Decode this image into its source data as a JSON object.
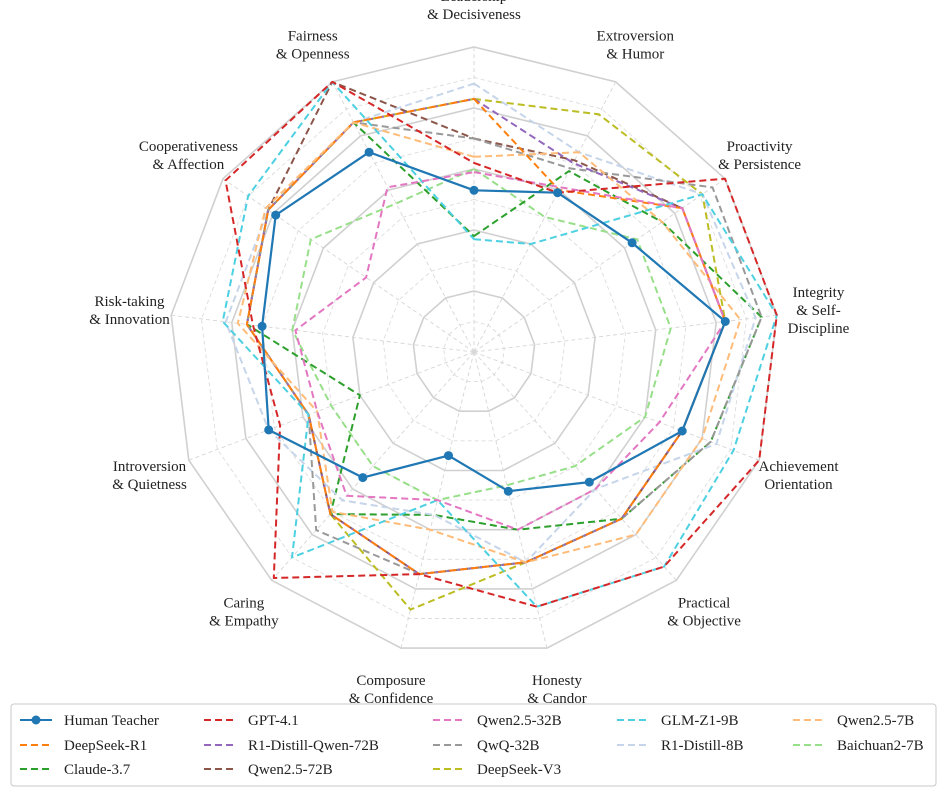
{
  "chart_data": {
    "type": "radar",
    "title": "",
    "axes": [
      [
        "Leadership",
        "& Decisiveness"
      ],
      [
        "Extroversion",
        "& Humor"
      ],
      [
        "Proactivity",
        "& Persistence"
      ],
      [
        "Integrity",
        "& Self-",
        "Discipline"
      ],
      [
        "Achievement",
        "Orientation"
      ],
      [
        "Practical",
        "& Objective"
      ],
      [
        "Honesty",
        "& Candor"
      ],
      [
        "Composure",
        "& Confidence"
      ],
      [
        "Caring",
        "& Empathy"
      ],
      [
        "Introversion",
        "& Quietness"
      ],
      [
        "Risk-taking",
        "& Innovation"
      ],
      [
        "Cooperativeness",
        "& Affection"
      ],
      [
        "Fairness",
        "& Openness"
      ]
    ],
    "rlim": [
      0,
      1
    ],
    "grid_levels": 10,
    "series": [
      {
        "name": "Human Teacher",
        "color": "#1f77b4",
        "dash": "solid",
        "marker": true,
        "values": [
          0.53,
          0.59,
          0.63,
          0.83,
          0.73,
          0.57,
          0.47,
          0.35,
          0.55,
          0.72,
          0.7,
          0.79,
          0.74
        ]
      },
      {
        "name": "GPT-4.1",
        "color": "#d62728",
        "dash": "dashed",
        "marker": false,
        "values": [
          0.62,
          0.59,
          1.0,
          1.0,
          1.0,
          0.94,
          0.86,
          0.75,
          0.99,
          0.68,
          0.73,
          0.99,
          1.0
        ]
      },
      {
        "name": "Qwen2.5-32B",
        "color": "#e377c2",
        "dash": "dashed",
        "marker": false,
        "values": [
          0.59,
          0.61,
          0.83,
          0.83,
          0.65,
          0.6,
          0.6,
          0.5,
          0.63,
          0.55,
          0.59,
          0.43,
          0.61
        ]
      },
      {
        "name": "GLM-Z1-9B",
        "color": "#4dd0e1",
        "dash": "dashed",
        "marker": false,
        "values": [
          0.37,
          0.4,
          0.91,
          1.0,
          0.91,
          0.94,
          0.86,
          0.5,
          0.9,
          0.58,
          0.83,
          0.9,
          1.0
        ]
      },
      {
        "name": "Qwen2.5-7B",
        "color": "#ffbb78",
        "dash": "dashed",
        "marker": false,
        "values": [
          0.64,
          0.74,
          0.75,
          0.88,
          0.8,
          0.8,
          0.71,
          0.6,
          0.7,
          0.55,
          0.78,
          0.83,
          0.85
        ]
      },
      {
        "name": "DeepSeek-R1",
        "color": "#ff7f0e",
        "dash": "dashed",
        "marker": false,
        "values": [
          0.83,
          0.6,
          0.83,
          0.83,
          0.73,
          0.73,
          0.71,
          0.75,
          0.71,
          0.58,
          0.75,
          0.82,
          0.85
        ]
      },
      {
        "name": "R1-Distill-Qwen-72B",
        "color": "#9467bd",
        "dash": "dashed",
        "marker": false,
        "values": [
          0.83,
          0.7,
          0.83,
          0.83,
          0.73,
          0.73,
          0.71,
          0.75,
          0.71,
          0.58,
          0.75,
          0.82,
          0.85
        ]
      },
      {
        "name": "QwQ-32B",
        "color": "#999999",
        "dash": "dashed",
        "marker": false,
        "values": [
          0.7,
          0.68,
          0.95,
          0.95,
          0.83,
          0.73,
          0.71,
          0.75,
          0.78,
          0.58,
          0.75,
          0.82,
          0.85
        ]
      },
      {
        "name": "R1-Distill-8B",
        "color": "#c6d5ea",
        "dash": "dashed",
        "marker": false,
        "values": [
          0.88,
          0.74,
          0.91,
          0.93,
          0.85,
          0.6,
          0.71,
          0.55,
          0.65,
          0.72,
          0.82,
          0.82,
          0.85
        ]
      },
      {
        "name": "Claude-3.7",
        "color": "#2ca02c",
        "dash": "dashed",
        "marker": false,
        "values": [
          0.38,
          0.67,
          0.75,
          0.95,
          0.83,
          0.73,
          0.6,
          0.55,
          0.71,
          0.4,
          0.75,
          0.82,
          0.85
        ]
      },
      {
        "name": "Qwen2.5-72B",
        "color": "#8c564b",
        "dash": "dashed",
        "marker": false,
        "values": [
          0.7,
          0.71,
          0.83,
          0.83,
          0.73,
          0.73,
          0.71,
          0.75,
          0.71,
          0.58,
          0.75,
          0.82,
          1.0
        ]
      },
      {
        "name": "DeepSeek-V3",
        "color": "#bcbd22",
        "dash": "dashed",
        "marker": false,
        "values": [
          0.83,
          0.88,
          0.91,
          0.83,
          0.73,
          0.73,
          0.71,
          0.87,
          0.71,
          0.58,
          0.75,
          0.82,
          0.85
        ]
      },
      {
        "name": "Baichuan2-7B",
        "color": "#98df8a",
        "dash": "dashed",
        "marker": false,
        "values": [
          0.6,
          0.5,
          0.65,
          0.65,
          0.6,
          0.5,
          0.45,
          0.5,
          0.5,
          0.5,
          0.6,
          0.65,
          0.55
        ]
      }
    ],
    "legend": {
      "placement": "bottom",
      "columns": [
        [
          "Human Teacher",
          "DeepSeek-R1",
          "Claude-3.7"
        ],
        [
          "GPT-4.1",
          "R1-Distill-Qwen-72B",
          "Qwen2.5-72B"
        ],
        [
          "Qwen2.5-32B",
          "QwQ-32B",
          "DeepSeek-V3"
        ],
        [
          "GLM-Z1-9B",
          "R1-Distill-8B"
        ],
        [
          "Qwen2.5-7B",
          "Baichuan2-7B"
        ]
      ]
    }
  }
}
